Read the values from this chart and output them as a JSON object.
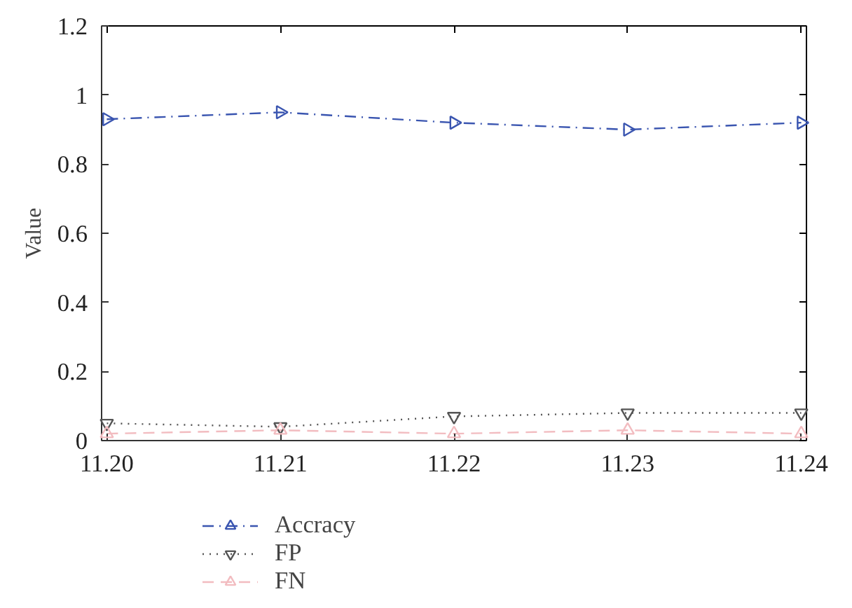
{
  "chart_data": {
    "type": "line",
    "ylabel": "Value",
    "categories": [
      "11.20",
      "11.21",
      "11.22",
      "11.23",
      "11.24"
    ],
    "series": [
      {
        "name": "Accracy",
        "color": "#3a55b0",
        "values": [
          0.93,
          0.95,
          0.92,
          0.9,
          0.92
        ],
        "marker": "triangle_right",
        "line_style": "dashdot"
      },
      {
        "name": "FP",
        "color": "#555555",
        "values": [
          0.05,
          0.04,
          0.07,
          0.08,
          0.08
        ],
        "marker": "triangle_down",
        "line_style": "dotted"
      },
      {
        "name": "FN",
        "color": "#f2bcc0",
        "values": [
          0.02,
          0.03,
          0.02,
          0.03,
          0.02
        ],
        "marker": "triangle",
        "line_style": "dashed"
      }
    ],
    "ylim": [
      0,
      1.2
    ],
    "yticks": [
      0,
      0.2,
      0.4,
      0.6,
      0.8,
      1,
      1.2
    ],
    "grid": false,
    "legend": "bottom"
  }
}
